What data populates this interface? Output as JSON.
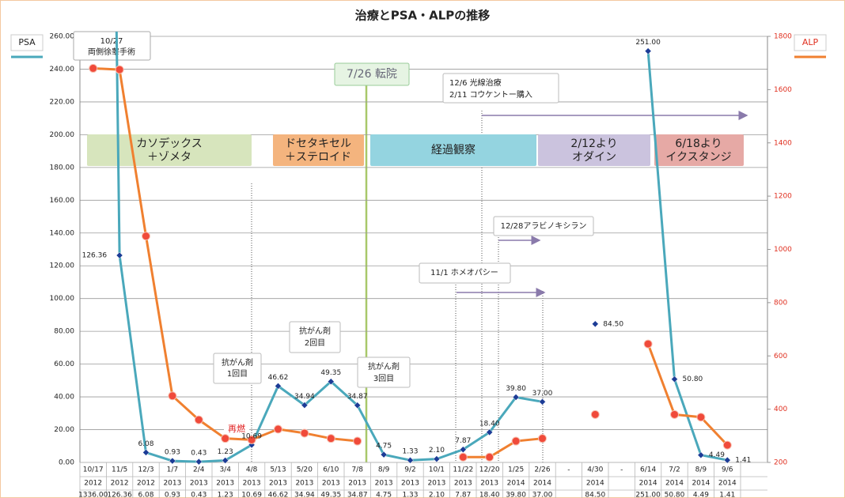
{
  "chart_data": {
    "type": "line",
    "title": "治療とPSA・ALPの推移",
    "y_label": "PSA",
    "y2_label": "ALP",
    "categories": [
      "10/17",
      "11/5",
      "12/3",
      "1/7",
      "2/4",
      "3/4",
      "4/8",
      "5/13",
      "5/20",
      "6/10",
      "7/8",
      "8/9",
      "9/2",
      "10/1",
      "11/22",
      "12/20",
      "1/25",
      "2/26",
      "-",
      "4/30",
      "-",
      "6/14",
      "7/2",
      "8/9",
      "9/6"
    ],
    "years": [
      "2012",
      "2012",
      "2012",
      "2013",
      "2013",
      "2013",
      "2013",
      "2013",
      "2013",
      "2013",
      "2013",
      "2013",
      "2013",
      "2013",
      "2013",
      "2013",
      "2014",
      "2014",
      null,
      "2014",
      null,
      "2014",
      "2014",
      "2014",
      "2014"
    ],
    "series": [
      {
        "name": "PSA",
        "color": "#4aa8bb",
        "marker_color": "#1c3c96",
        "values": [
          1336,
          126.36,
          6.08,
          0.93,
          0.43,
          1.23,
          10.69,
          46.62,
          34.94,
          49.35,
          34.87,
          4.75,
          1.33,
          2.1,
          7.87,
          18.4,
          39.8,
          37.0,
          null,
          84.5,
          null,
          251.0,
          50.8,
          4.49,
          1.41
        ],
        "value_labels": [
          "1336.00",
          "126.36",
          "6.08",
          "0.93",
          "0.43",
          "1.23",
          "10.69",
          "46.62",
          "34.94",
          "49.35",
          "34.87",
          "4.75",
          "1.33",
          "2.10",
          "7.87",
          "18.40",
          "39.80",
          "37.00",
          null,
          "84.50",
          null,
          "251.00",
          "50.80",
          "4.49",
          "1.41"
        ]
      },
      {
        "name": "ALP",
        "color": "#f08030",
        "marker_color": "#f04a3a",
        "axis": "y2",
        "values": [
          1680,
          1675,
          1050,
          450,
          360,
          290,
          285,
          325,
          310,
          290,
          280,
          null,
          null,
          null,
          220,
          220,
          280,
          290,
          null,
          380,
          null,
          645,
          380,
          370,
          265
        ]
      }
    ],
    "ylim": [
      0,
      260
    ],
    "yticks": [
      {
        "value": 0,
        "label": "0.00"
      },
      {
        "value": 20,
        "label": "20.00"
      },
      {
        "value": 40,
        "label": "40.00"
      },
      {
        "value": 60,
        "label": "60.00"
      },
      {
        "value": 80,
        "label": "80.00"
      },
      {
        "value": 100,
        "label": "100.00"
      },
      {
        "value": 120,
        "label": "120.00"
      },
      {
        "value": 140,
        "label": "140.00"
      },
      {
        "value": 160,
        "label": "160.00"
      },
      {
        "value": 180,
        "label": "180.00"
      },
      {
        "value": 200,
        "label": "200.00"
      },
      {
        "value": 220,
        "label": "220.00"
      },
      {
        "value": 240,
        "label": "240.00"
      },
      {
        "value": 260,
        "label": "260.00"
      }
    ],
    "y2lim": [
      200,
      1800
    ],
    "y2ticks": [
      200,
      400,
      600,
      800,
      1000,
      1200,
      1400,
      1600,
      1800
    ],
    "grid": true,
    "annotations": [
      {
        "lines": [
          "10/27",
          "両側徐睾手術"
        ]
      },
      {
        "lines": [
          "7/26 転院"
        ]
      },
      {
        "lines": [
          "12/6  光線治療",
          "2/11  コウケントー購入"
        ]
      },
      {
        "lines": [
          "カソデックス",
          "＋ゾメタ"
        ]
      },
      {
        "lines": [
          "ドセタキセル",
          "＋ステロイド"
        ]
      },
      {
        "lines": [
          "経過観察"
        ]
      },
      {
        "lines": [
          "2/12より",
          "オダイン"
        ]
      },
      {
        "lines": [
          "6/18より",
          "イクスタンジ"
        ]
      },
      {
        "lines": [
          "12/28アラビノキシラン"
        ]
      },
      {
        "lines": [
          "11/1  ホメオパシー"
        ]
      },
      {
        "lines": [
          "抗がん剤",
          "1回目"
        ]
      },
      {
        "lines": [
          "抗がん剤",
          "2回目"
        ]
      },
      {
        "lines": [
          "抗がん剤",
          "3回目"
        ]
      },
      {
        "lines": [
          "再燃"
        ]
      }
    ]
  }
}
